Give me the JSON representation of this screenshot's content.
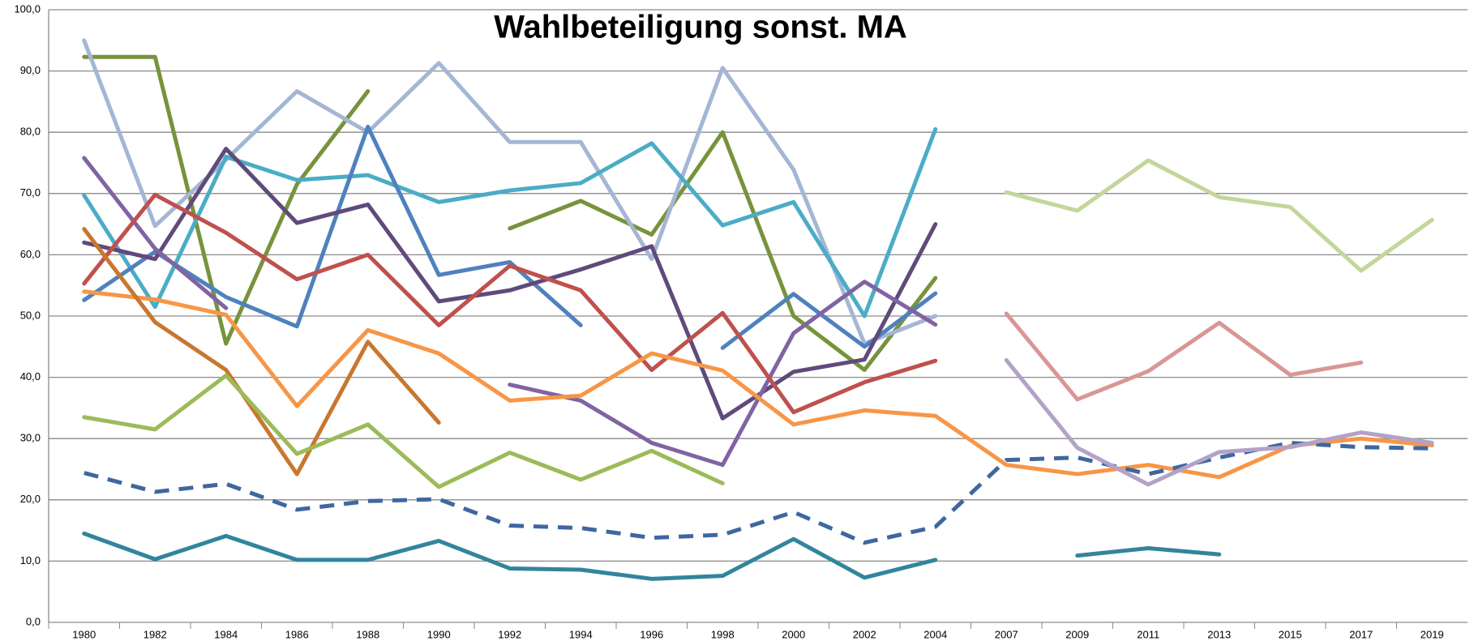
{
  "chart_data": {
    "type": "line",
    "title": "Wahlbeteiligung sonst. MA",
    "categories": [
      "1980",
      "1982",
      "1984",
      "1986",
      "1988",
      "1990",
      "1992",
      "1994",
      "1996",
      "1998",
      "2000",
      "2002",
      "2004",
      "2007",
      "2009",
      "2011",
      "2013",
      "2015",
      "2017",
      "2019"
    ],
    "ylim": [
      0,
      100
    ],
    "yticks": [
      {
        "value": 0,
        "label": "0,0"
      },
      {
        "value": 10,
        "label": "10,0"
      },
      {
        "value": 20,
        "label": "20,0"
      },
      {
        "value": 30,
        "label": "30,0"
      },
      {
        "value": 40,
        "label": "40,0"
      },
      {
        "value": 50,
        "label": "50,0"
      },
      {
        "value": 60,
        "label": "60,0"
      },
      {
        "value": 70,
        "label": "70,0"
      },
      {
        "value": 80,
        "label": "80,0"
      },
      {
        "value": 90,
        "label": "90,0"
      },
      {
        "value": 100,
        "label": "100,0"
      }
    ],
    "grid": true,
    "series": [
      {
        "color": "#77933c",
        "values": [
          92.3,
          92.3,
          45.5,
          71.5,
          86.7,
          null,
          64.3,
          68.8,
          63.3,
          80.0,
          50.0,
          41.2,
          56.2,
          null,
          null,
          null,
          null,
          null,
          null,
          null
        ]
      },
      {
        "color": "#a5b6d5",
        "values": [
          95.0,
          64.7,
          75.5,
          86.7,
          80.0,
          91.3,
          78.4,
          78.4,
          59.3,
          90.5,
          73.9,
          45.5,
          50.0,
          null,
          null,
          null,
          null,
          null,
          null,
          null
        ]
      },
      {
        "color": "#4bacc6",
        "values": [
          69.7,
          51.5,
          76.0,
          72.2,
          73.0,
          68.6,
          70.5,
          71.7,
          78.2,
          64.8,
          68.6,
          50.0,
          80.5,
          null,
          null,
          null,
          null,
          null,
          null,
          null
        ]
      },
      {
        "color": "#4f81bd",
        "values": [
          52.6,
          60.5,
          53.1,
          48.3,
          80.9,
          56.7,
          58.8,
          48.5,
          null,
          44.8,
          53.6,
          45.0,
          53.7,
          null,
          null,
          null,
          null,
          null,
          null,
          null
        ]
      },
      {
        "color": "#604a7b",
        "values": [
          62.0,
          59.3,
          77.3,
          65.2,
          68.2,
          52.4,
          54.2,
          57.6,
          61.4,
          33.3,
          40.9,
          42.9,
          65.0,
          null,
          null,
          null,
          null,
          null,
          null,
          null
        ]
      },
      {
        "color": "#8064a2",
        "values": [
          75.8,
          61.0,
          51.3,
          null,
          null,
          null,
          38.8,
          36.2,
          29.3,
          25.7,
          47.2,
          55.6,
          48.6,
          null,
          null,
          null,
          null,
          null,
          null,
          null
        ]
      },
      {
        "color": "#c0504d",
        "values": [
          55.3,
          69.8,
          63.6,
          56.0,
          60.0,
          48.5,
          58.2,
          54.2,
          41.2,
          50.5,
          34.3,
          39.2,
          42.7,
          null,
          null,
          null,
          null,
          null,
          null,
          null
        ]
      },
      {
        "color": "#f79646",
        "values": [
          54.0,
          52.7,
          50.2,
          35.3,
          47.7,
          43.9,
          36.2,
          37.0,
          43.9,
          41.1,
          32.3,
          34.6,
          33.7,
          25.7,
          24.2,
          25.7,
          23.7,
          28.8,
          30.0,
          28.9
        ]
      },
      {
        "color": "#c8772f",
        "values": [
          64.2,
          49.0,
          41.2,
          24.2,
          45.8,
          32.6,
          null,
          null,
          null,
          null,
          null,
          null,
          null,
          null,
          null,
          null,
          null,
          null,
          null,
          null
        ]
      },
      {
        "color": "#9bbb59",
        "values": [
          33.5,
          31.5,
          40.3,
          27.5,
          32.3,
          22.1,
          27.7,
          23.3,
          28.0,
          22.7,
          null,
          null,
          null,
          null,
          null,
          null,
          null,
          null,
          null,
          null
        ]
      },
      {
        "color": "#3e67a0",
        "dashed": true,
        "values": [
          24.4,
          21.3,
          22.6,
          18.4,
          19.8,
          20.1,
          15.8,
          15.4,
          13.8,
          14.3,
          18.0,
          13.0,
          15.6,
          26.5,
          26.9,
          24.2,
          26.9,
          29.3,
          28.6,
          28.4
        ]
      },
      {
        "color": "#31859c",
        "values": [
          14.5,
          10.3,
          14.1,
          10.2,
          10.2,
          13.3,
          8.8,
          8.6,
          7.1,
          7.6,
          13.6,
          7.3,
          10.2,
          null,
          10.9,
          12.1,
          11.1,
          null,
          null,
          null
        ]
      },
      {
        "color": "#c3d69b",
        "values": [
          null,
          null,
          null,
          null,
          null,
          null,
          null,
          null,
          null,
          null,
          null,
          null,
          null,
          70.2,
          67.2,
          75.4,
          69.4,
          67.8,
          57.4,
          65.7
        ]
      },
      {
        "color": "#d99694",
        "values": [
          null,
          null,
          null,
          null,
          null,
          null,
          null,
          null,
          null,
          null,
          null,
          null,
          null,
          50.4,
          36.4,
          41.0,
          48.9,
          40.4,
          42.4,
          null
        ]
      },
      {
        "color": "#b3a2c7",
        "values": [
          null,
          null,
          null,
          null,
          null,
          null,
          null,
          null,
          null,
          null,
          null,
          null,
          null,
          42.8,
          28.5,
          22.5,
          27.8,
          28.6,
          31.0,
          29.3
        ]
      }
    ]
  }
}
